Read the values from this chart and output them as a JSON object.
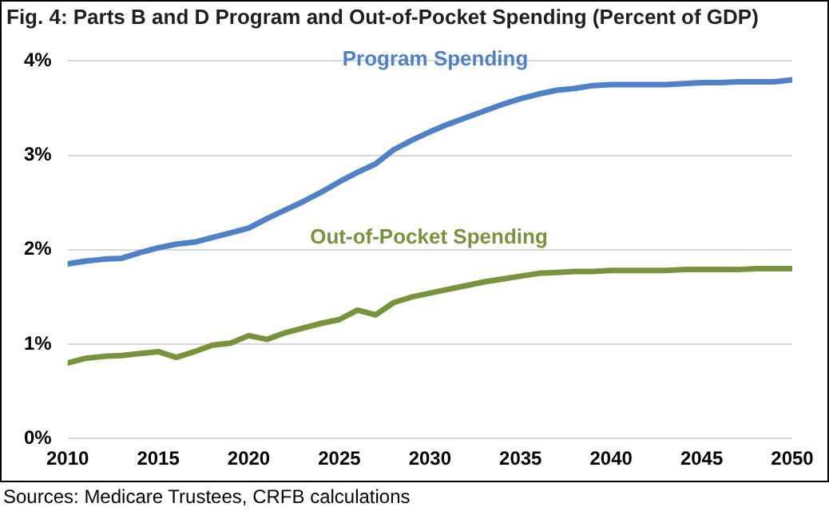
{
  "chart_data": {
    "type": "line",
    "title": "Fig. 4: Parts B and D Program and Out-of-Pocket Spending (Percent of GDP)",
    "annotations": [
      "Sources: Medicare Trustees, CRFB calculations"
    ],
    "x": [
      2010,
      2011,
      2012,
      2013,
      2014,
      2015,
      2016,
      2017,
      2018,
      2019,
      2020,
      2021,
      2022,
      2023,
      2024,
      2025,
      2026,
      2027,
      2028,
      2029,
      2030,
      2031,
      2032,
      2033,
      2034,
      2035,
      2036,
      2037,
      2038,
      2039,
      2040,
      2041,
      2042,
      2043,
      2044,
      2045,
      2046,
      2047,
      2048,
      2049,
      2050
    ],
    "series": [
      {
        "name": "Program Spending",
        "color": "#4f81c7",
        "values": [
          1.85,
          1.88,
          1.9,
          1.91,
          1.97,
          2.02,
          2.06,
          2.08,
          2.13,
          2.18,
          2.23,
          2.33,
          2.42,
          2.51,
          2.61,
          2.72,
          2.82,
          2.91,
          3.06,
          3.16,
          3.25,
          3.33,
          3.4,
          3.47,
          3.54,
          3.6,
          3.65,
          3.69,
          3.71,
          3.74,
          3.75,
          3.75,
          3.75,
          3.75,
          3.76,
          3.77,
          3.77,
          3.78,
          3.78,
          3.78,
          3.8
        ]
      },
      {
        "name": "Out-of-Pocket Spending",
        "color": "#77933c",
        "values": [
          0.8,
          0.85,
          0.87,
          0.88,
          0.9,
          0.92,
          0.86,
          0.92,
          0.99,
          1.01,
          1.09,
          1.05,
          1.12,
          1.17,
          1.22,
          1.26,
          1.36,
          1.31,
          1.44,
          1.5,
          1.54,
          1.58,
          1.62,
          1.66,
          1.69,
          1.72,
          1.75,
          1.76,
          1.77,
          1.77,
          1.78,
          1.78,
          1.78,
          1.78,
          1.79,
          1.79,
          1.79,
          1.79,
          1.8,
          1.8,
          1.8
        ]
      }
    ],
    "xlim": [
      2010,
      2050
    ],
    "xticks": [
      2010,
      2015,
      2020,
      2025,
      2030,
      2035,
      2040,
      2045,
      2050
    ],
    "ylim": [
      0,
      4
    ],
    "yticks": [
      {
        "value": 0,
        "label": "0%"
      },
      {
        "value": 1,
        "label": "1%"
      },
      {
        "value": 2,
        "label": "2%"
      },
      {
        "value": 3,
        "label": "3%"
      },
      {
        "value": 4,
        "label": "4%"
      }
    ],
    "grid": "y",
    "legend": false,
    "marker": "none",
    "line_style": "solid"
  }
}
